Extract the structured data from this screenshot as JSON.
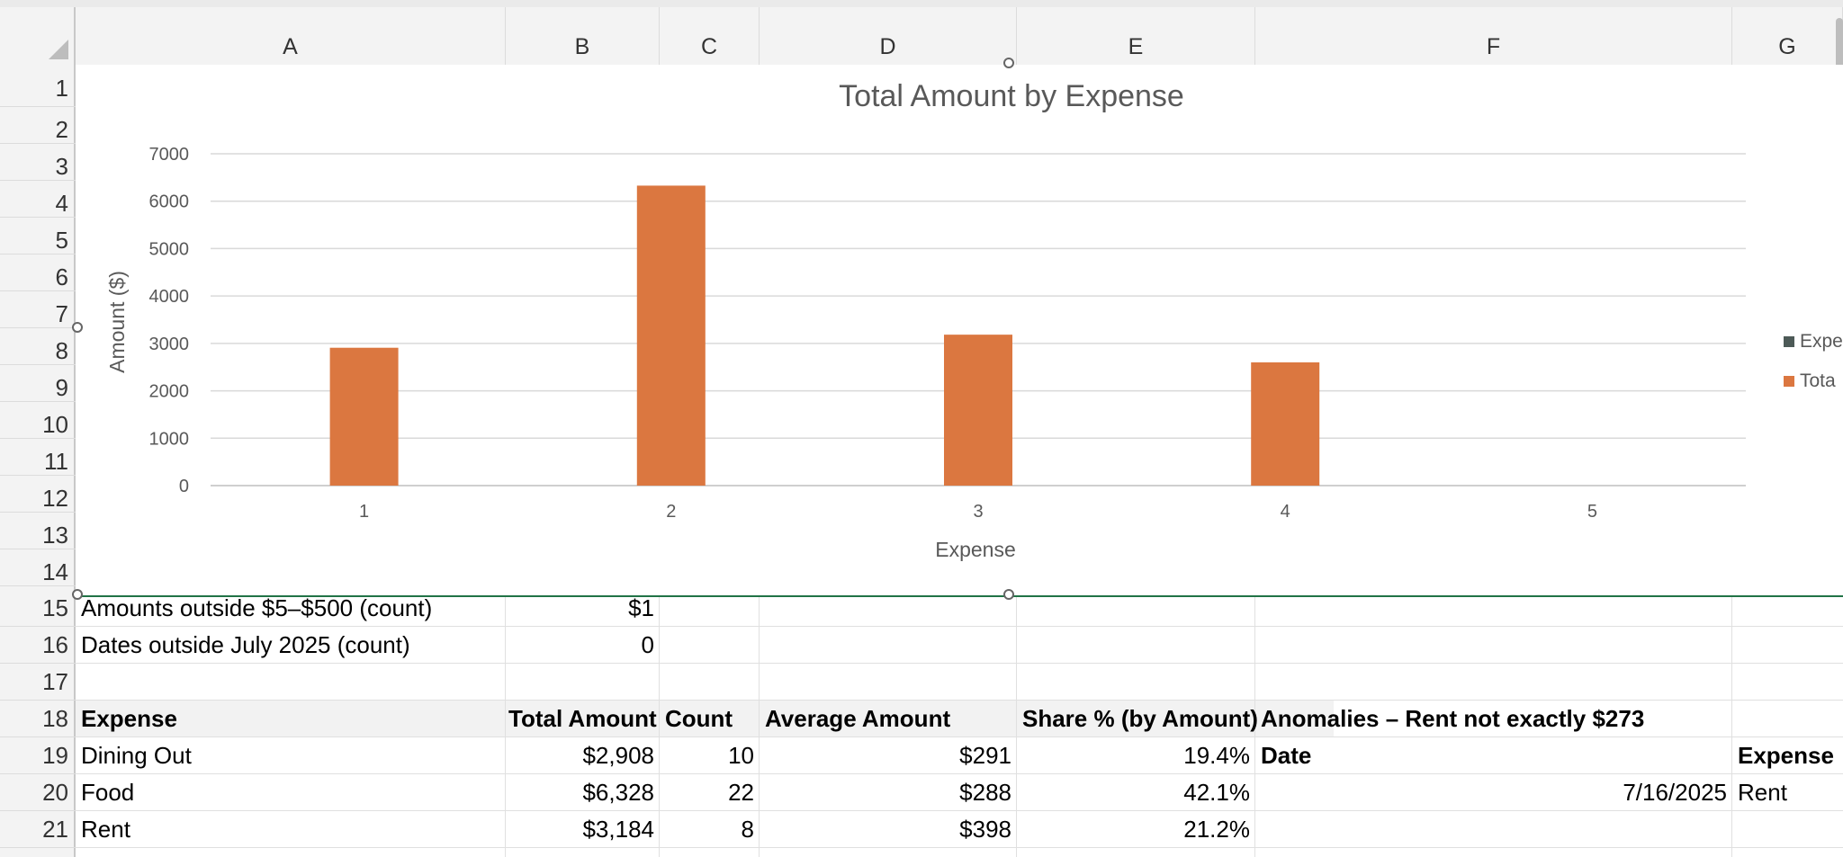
{
  "columns": [
    "A",
    "B",
    "C",
    "D",
    "E",
    "F",
    "G"
  ],
  "rows": [
    "1",
    "2",
    "3",
    "4",
    "5",
    "6",
    "7",
    "8",
    "9",
    "10",
    "11",
    "12",
    "13",
    "14",
    "15",
    "16",
    "17",
    "18",
    "19",
    "20",
    "21"
  ],
  "chart_data": {
    "type": "bar",
    "title": "Total Amount by Expense",
    "xlabel": "Expense",
    "ylabel": "Amount ($)",
    "categories": [
      "1",
      "2",
      "3",
      "4",
      "5"
    ],
    "ylim": [
      0,
      7000
    ],
    "yticks": [
      "0",
      "1000",
      "2000",
      "3000",
      "4000",
      "5000",
      "6000",
      "7000"
    ],
    "series": [
      {
        "name": "Expe",
        "values": [
          0,
          0,
          0,
          0,
          0
        ],
        "color": "#4d5a57"
      },
      {
        "name": "Tota",
        "values": [
          2908,
          6328,
          3184,
          2600,
          0
        ],
        "color": "#db7740"
      }
    ],
    "grid": true,
    "legend": "right"
  },
  "cells": {
    "r15": {
      "a": "Amounts outside $5–$500 (count)",
      "b": "$1"
    },
    "r16": {
      "a": "Dates outside July 2025 (count)",
      "b": "0"
    },
    "r18": {
      "a": "Expense",
      "b": "Total Amount",
      "c": "Count",
      "d": "Average Amount",
      "e": "Share % (by Amount)",
      "f": "Anomalies – Rent not exactly $273"
    },
    "r19": {
      "a": "Dining Out",
      "b": "$2,908",
      "c": "10",
      "d": "$291",
      "e": "19.4%",
      "f": "Date",
      "g": "Expense"
    },
    "r20": {
      "a": "Food",
      "b": "$6,328",
      "c": "22",
      "d": "$288",
      "e": "42.1%",
      "f": "7/16/2025",
      "g": "Rent"
    },
    "r21": {
      "a": "Rent",
      "b": "$3,184",
      "c": "8",
      "d": "$398",
      "e": "21.2%"
    }
  }
}
